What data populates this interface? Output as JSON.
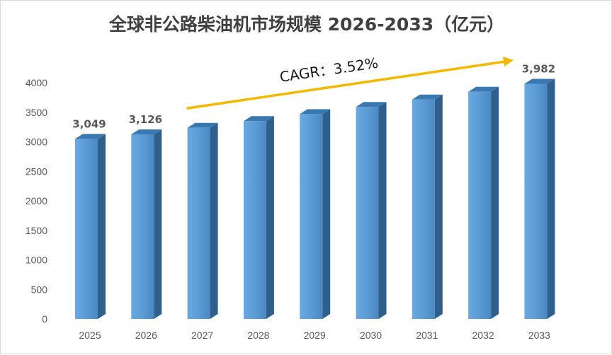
{
  "chart_data": {
    "type": "bar",
    "title": "全球非公路柴油机市场规模 2026-2033（亿元）",
    "categories": [
      "2025",
      "2026",
      "2027",
      "2028",
      "2029",
      "2030",
      "2031",
      "2032",
      "2033"
    ],
    "values": [
      3049,
      3126,
      3236,
      3350,
      3468,
      3590,
      3716,
      3847,
      3982
    ],
    "data_labels": {
      "0": "3,049",
      "1": "3,126",
      "8": "3,982"
    },
    "y_ticks": [
      "0",
      "500",
      "1000",
      "1500",
      "2000",
      "2500",
      "3000",
      "3500",
      "4000"
    ],
    "ylim": [
      0,
      4000
    ],
    "xlabel": "",
    "ylabel": "",
    "grid": false,
    "annotation": {
      "text": "CAGR：3.52%",
      "arrow_color": "#f5b800"
    },
    "colors": {
      "bar_front": "#5b9bd5",
      "bar_side": "#2f5f8c",
      "bar_top": "#3a78b2"
    }
  }
}
